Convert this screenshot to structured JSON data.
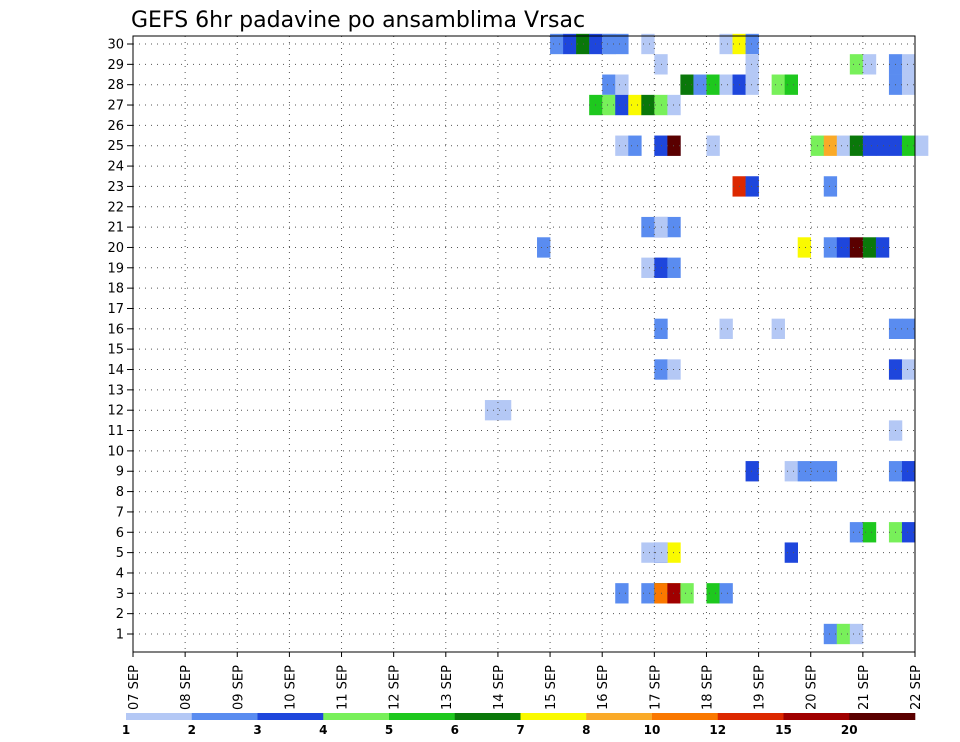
{
  "chart_data": {
    "type": "heatmap",
    "title": "GEFS 6hr padavine po ansamblima Vrsac",
    "x_tick_labels": [
      "07 SEP",
      "08 SEP",
      "09 SEP",
      "10 SEP",
      "11 SEP",
      "12 SEP",
      "13 SEP",
      "14 SEP",
      "15 SEP",
      "16 SEP",
      "17 SEP",
      "18 SEP",
      "19 SEP",
      "20 SEP",
      "21 SEP",
      "22 SEP"
    ],
    "x_range_days": [
      7,
      22
    ],
    "x_step_days": 0.25,
    "y_tick_labels": [
      1,
      2,
      3,
      4,
      5,
      6,
      7,
      8,
      9,
      10,
      11,
      12,
      13,
      14,
      15,
      16,
      17,
      18,
      19,
      20,
      21,
      22,
      23,
      24,
      25,
      26,
      27,
      28,
      29,
      30
    ],
    "y_range": [
      1,
      30
    ],
    "grid": true,
    "legend": {
      "placement": "bottom",
      "labels": [
        "1",
        "2",
        "3",
        "4",
        "5",
        "6",
        "7",
        "8",
        "10",
        "12",
        "15",
        "20"
      ],
      "colors": [
        "#b4c8f5",
        "#5a8cf0",
        "#1e46dc",
        "#78f05a",
        "#1ec81e",
        "#0a780a",
        "#fafa00",
        "#faaa28",
        "#fa7800",
        "#dc2800",
        "#a00000",
        "#5a0000"
      ]
    },
    "cells": [
      {
        "member": 30,
        "cls": [
          [
            15,
            0,
            2
          ],
          [
            15,
            1,
            3
          ],
          [
            15,
            2,
            6
          ],
          [
            15,
            3,
            3
          ],
          [
            15,
            4,
            1
          ],
          [
            15,
            5,
            2
          ],
          [
            16,
            0,
            2
          ],
          [
            16,
            3,
            1
          ],
          [
            18,
            1,
            1
          ],
          [
            18,
            2,
            7
          ],
          [
            18,
            3,
            2
          ]
        ]
      },
      {
        "member": 29,
        "cls": [
          [
            17,
            0,
            1
          ],
          [
            18,
            3,
            1
          ],
          [
            20,
            3,
            4
          ],
          [
            21,
            0,
            1
          ],
          [
            21,
            2,
            2
          ],
          [
            21,
            3,
            1
          ]
        ]
      },
      {
        "member": 28,
        "cls": [
          [
            16,
            0,
            2
          ],
          [
            16,
            1,
            1
          ],
          [
            17,
            2,
            6
          ],
          [
            17,
            3,
            2
          ],
          [
            18,
            0,
            5
          ],
          [
            18,
            1,
            1
          ],
          [
            18,
            2,
            3
          ],
          [
            18,
            3,
            1
          ],
          [
            19,
            1,
            4
          ],
          [
            19,
            2,
            5
          ],
          [
            21,
            2,
            2
          ],
          [
            21,
            3,
            1
          ]
        ]
      },
      {
        "member": 27,
        "cls": [
          [
            15,
            3,
            5
          ],
          [
            15,
            4,
            4
          ],
          [
            15,
            5,
            3
          ],
          [
            16,
            2,
            7
          ],
          [
            16,
            3,
            6
          ],
          [
            16,
            4,
            4
          ],
          [
            16,
            5,
            1
          ]
        ]
      },
      {
        "member": 25,
        "cls": [
          [
            16,
            1,
            1
          ],
          [
            16,
            2,
            2
          ],
          [
            16,
            4,
            1
          ],
          [
            16,
            5,
            1
          ],
          [
            17,
            0,
            3
          ],
          [
            17,
            1,
            12
          ],
          [
            18,
            0,
            1
          ],
          [
            20,
            0,
            4
          ],
          [
            20,
            1,
            8
          ],
          [
            20,
            2,
            1
          ],
          [
            20,
            3,
            6
          ],
          [
            21,
            0,
            3
          ],
          [
            21,
            1,
            3
          ],
          [
            21,
            2,
            3
          ],
          [
            21,
            3,
            5
          ],
          [
            22,
            0,
            1
          ]
        ]
      },
      {
        "member": 23,
        "cls": [
          [
            18,
            2,
            10
          ],
          [
            18,
            3,
            3
          ],
          [
            20,
            1,
            2
          ]
        ]
      },
      {
        "member": 21,
        "cls": [
          [
            16,
            3,
            2
          ],
          [
            16,
            4,
            3
          ],
          [
            16,
            5,
            2
          ],
          [
            17,
            0,
            1
          ]
        ]
      },
      {
        "member": 20,
        "cls": [
          [
            14,
            3,
            2
          ],
          [
            19,
            3,
            7
          ],
          [
            20,
            1,
            2
          ],
          [
            20,
            2,
            3
          ],
          [
            20,
            3,
            12
          ],
          [
            21,
            0,
            6
          ],
          [
            21,
            1,
            3
          ]
        ]
      },
      {
        "member": 19,
        "cls": [
          [
            16,
            3,
            1
          ],
          [
            16,
            4,
            1
          ],
          [
            17,
            0,
            3
          ],
          [
            17,
            1,
            2
          ]
        ]
      },
      {
        "member": 16,
        "cls": [
          [
            17,
            0,
            2
          ],
          [
            18,
            1,
            1
          ],
          [
            19,
            1,
            1
          ],
          [
            21,
            2,
            2
          ],
          [
            21,
            3,
            2
          ]
        ]
      },
      {
        "member": 14,
        "cls": [
          [
            17,
            0,
            2
          ],
          [
            17,
            1,
            1
          ],
          [
            21,
            2,
            3
          ],
          [
            21,
            3,
            1
          ]
        ]
      },
      {
        "member": 12,
        "cls": [
          [
            13,
            3,
            1
          ],
          [
            14,
            0,
            1
          ]
        ]
      },
      {
        "member": 11,
        "cls": [
          [
            21,
            2,
            1
          ]
        ]
      },
      {
        "member": 9,
        "cls": [
          [
            18,
            3,
            3
          ],
          [
            19,
            2,
            1
          ],
          [
            19,
            3,
            2
          ],
          [
            20,
            0,
            2
          ],
          [
            20,
            1,
            2
          ],
          [
            21,
            2,
            2
          ],
          [
            21,
            3,
            3
          ]
        ]
      },
      {
        "member": 6,
        "cls": [
          [
            20,
            3,
            2
          ],
          [
            21,
            0,
            5
          ],
          [
            21,
            2,
            4
          ],
          [
            21,
            3,
            3
          ]
        ]
      },
      {
        "member": 5,
        "cls": [
          [
            16,
            3,
            1
          ],
          [
            16,
            4,
            3
          ],
          [
            16,
            5,
            7
          ],
          [
            17,
            0,
            1
          ],
          [
            19,
            2,
            3
          ]
        ]
      },
      {
        "member": 3,
        "cls": [
          [
            16,
            1,
            2
          ],
          [
            16,
            3,
            2
          ],
          [
            16,
            4,
            6
          ],
          [
            16,
            5,
            7
          ],
          [
            17,
            0,
            9
          ],
          [
            17,
            1,
            11
          ],
          [
            17,
            2,
            4
          ],
          [
            18,
            0,
            5
          ],
          [
            18,
            1,
            2
          ]
        ]
      },
      {
        "member": 1,
        "cls": [
          [
            20,
            1,
            2
          ],
          [
            20,
            2,
            4
          ],
          [
            20,
            3,
            1
          ]
        ]
      }
    ]
  }
}
